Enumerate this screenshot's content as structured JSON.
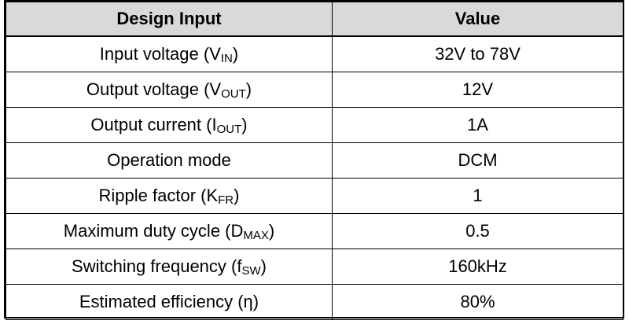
{
  "table": {
    "headers": [
      "Design Input",
      "Value"
    ],
    "rows": [
      {
        "label": "Input voltage (V",
        "sub": "IN",
        "suffix": ")",
        "value": "32V to 78V"
      },
      {
        "label": "Output voltage (V",
        "sub": "OUT",
        "suffix": ")",
        "value": "12V"
      },
      {
        "label": "Output current (I",
        "sub": "OUT",
        "suffix": ")",
        "value": "1A"
      },
      {
        "label": "Operation mode",
        "sub": "",
        "suffix": "",
        "value": "DCM"
      },
      {
        "label": "Ripple factor (K",
        "sub": "FR",
        "suffix": ")",
        "value": "1"
      },
      {
        "label": "Maximum duty cycle (D",
        "sub": "MAX",
        "suffix": ")",
        "value": "0.5"
      },
      {
        "label": "Switching frequency (f",
        "sub": "SW",
        "suffix": ")",
        "value": "160kHz"
      },
      {
        "label": "Estimated efficiency (η)",
        "sub": "",
        "suffix": "",
        "value": "80%"
      }
    ]
  }
}
